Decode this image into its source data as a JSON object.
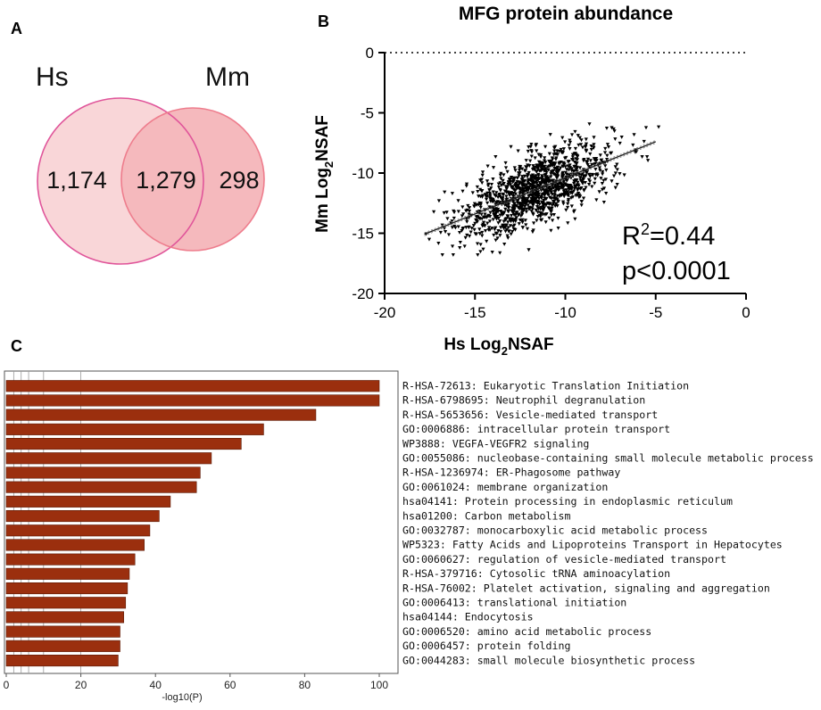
{
  "panels": {
    "a": "A",
    "b": "B",
    "c": "C"
  },
  "venn": {
    "left_label": "Hs",
    "right_label": "Mm",
    "left_only": "1,174",
    "overlap": "1,279",
    "right_only": "298",
    "colors": {
      "left_stroke": "#e0559a",
      "right_stroke": "#ee7d8d",
      "fill": "#f9d6d8",
      "overlap_fill": "#f5b9bd"
    }
  },
  "chart_data": [
    {
      "type": "scatter",
      "title": "MFG protein abundance",
      "xlabel_main": "Hs Log",
      "xlabel_sub": "2",
      "xlabel_tail": "NSAF",
      "ylabel_main": "Mm Log",
      "ylabel_sub": "2",
      "ylabel_tail": "NSAF",
      "xlim": [
        -20,
        0
      ],
      "ylim": [
        -20,
        0
      ],
      "xticks": [
        -20,
        -15,
        -10,
        -5,
        0
      ],
      "yticks": [
        0,
        -5,
        -10,
        -15,
        -20
      ],
      "reference_line_y": 0,
      "point_count": 1279,
      "point_cloud": {
        "x_mean": -11.6,
        "x_sd": 2.1,
        "x_range": [
          -17.8,
          -4.8
        ],
        "residual_sd": 1.45
      },
      "regression": {
        "slope": 0.6,
        "intercept": -4.4,
        "x_range": [
          -17.8,
          -5.0
        ]
      },
      "r2_prefix": "R",
      "r2_sup": "2",
      "r2_value": "=0.44",
      "p_value": "p<0.0001"
    },
    {
      "type": "bar",
      "orientation": "horizontal",
      "xlabel": "-log10(P)",
      "xlim": [
        0,
        100
      ],
      "xticks": [
        0,
        20,
        40,
        60,
        80,
        100
      ],
      "bar_color": "#9b2f0e",
      "categories": [
        "R-HSA-72613: Eukaryotic Translation Initiation",
        "R-HSA-6798695: Neutrophil degranulation",
        "R-HSA-5653656: Vesicle-mediated transport",
        "GO:0006886: intracellular protein transport",
        "WP3888: VEGFA-VEGFR2 signaling",
        "GO:0055086: nucleobase-containing small molecule metabolic process",
        "R-HSA-1236974: ER-Phagosome pathway",
        "GO:0061024: membrane organization",
        "hsa04141: Protein processing in endoplasmic reticulum",
        "hsa01200: Carbon metabolism",
        "GO:0032787: monocarboxylic acid metabolic process",
        "WP5323: Fatty Acids and Lipoproteins Transport in Hepatocytes",
        "GO:0060627: regulation of vesicle-mediated transport",
        "R-HSA-379716: Cytosolic tRNA aminoacylation",
        "R-HSA-76002: Platelet activation, signaling and aggregation",
        "GO:0006413: translational initiation",
        "hsa04144: Endocytosis",
        "GO:0006520: amino acid metabolic process",
        "GO:0006457: protein folding",
        "GO:0044283: small molecule biosynthetic process"
      ],
      "values": [
        100,
        100,
        83,
        69,
        63,
        55,
        52,
        51,
        44,
        41,
        38.5,
        37,
        34.5,
        33,
        32.5,
        32,
        31.5,
        30.5,
        30.5,
        30
      ]
    }
  ]
}
